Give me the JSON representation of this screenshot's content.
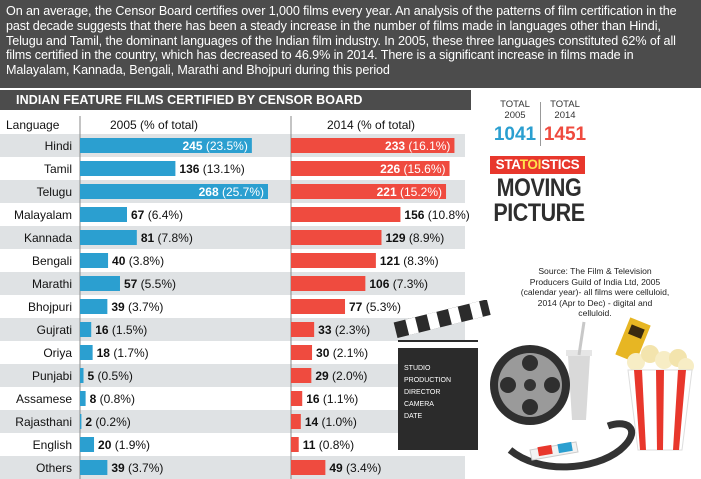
{
  "intro_text": "On an average, the Censor Board certifies over 1,000 films every year. An analysis of the patterns of film certification in the past decade suggests that there has been a steady increase in the number of films made in languages other than Hindi, Telugu and Tamil, the dominant languages of the Indian film industry.  In 2005, these three languages constituted 62% of all films certified in the country, which has decreased to 46.9% in 2014. There is a significant increase in films made in Malayalam, Kannada, Bengali, Marathi and Bhojpuri during this period",
  "totals": {
    "y2005": {
      "label_line1": "TOTAL",
      "label_line2": "2005",
      "value": "1041"
    },
    "y2014": {
      "label_line1": "TOTAL",
      "label_line2": "2014",
      "value": "1451"
    }
  },
  "brand": {
    "part1": "STA",
    "part2": "TOI",
    "part3": "STICS"
  },
  "headline": {
    "line1": "MOVING",
    "line2": "PICTURE"
  },
  "source_text": "Source: The Film & Television Producers Guild of India Ltd, 2005 (calendar year)- all films were celluloid, 2014 (Apr to Dec) - digital and celluloid.",
  "illustration_labels": [
    "STUDIO",
    "PRODUCTION",
    "DIRECTOR",
    "CAMERA",
    "DATE"
  ],
  "colors": {
    "bar_2005": "#2b9fd0",
    "bar_2014": "#ef4b3f",
    "dark_band": "#4c4c4c",
    "row_stripe": "#dfe2e4",
    "brand_red": "#e8372c"
  },
  "chart_data": {
    "type": "bar",
    "title": "INDIAN FEATURE FILMS CERTIFIED BY CENSOR BOARD",
    "category_header": "Language",
    "categories": [
      "Hindi",
      "Tamil",
      "Telugu",
      "Malayalam",
      "Kannada",
      "Bengali",
      "Marathi",
      "Bhojpuri",
      "Gujrati",
      "Oriya",
      "Punjabi",
      "Assamese",
      "Rajasthani",
      "English",
      "Others"
    ],
    "series": [
      {
        "name": "2005 (% of total)",
        "values": [
          245,
          136,
          268,
          67,
          81,
          40,
          57,
          39,
          16,
          18,
          5,
          8,
          2,
          20,
          39
        ],
        "percent_labels": [
          "(23.5%)",
          "(13.1%)",
          "(25.7%)",
          "(6.4%)",
          "(7.8%)",
          "(3.8%)",
          "(5.5%)",
          "(3.7%)",
          "(1.5%)",
          "(1.7%)",
          "(0.5%)",
          "(0.8%)",
          "(0.2%)",
          "(1.9%)",
          "(3.7%)"
        ]
      },
      {
        "name": "2014 (% of total)",
        "values": [
          233,
          226,
          221,
          156,
          129,
          121,
          106,
          77,
          33,
          30,
          29,
          16,
          14,
          11,
          49
        ],
        "percent_labels": [
          "(16.1%)",
          "(15.6%)",
          "(15.2%)",
          "(10.8%)",
          "(8.9%)",
          "(8.3%)",
          "(7.3%)",
          "(5.3%)",
          "(2.3%)",
          "(2.1%)",
          "(2.0%)",
          "(1.1%)",
          "(1.0%)",
          "(0.8%)",
          "(3.4%)"
        ]
      }
    ]
  }
}
